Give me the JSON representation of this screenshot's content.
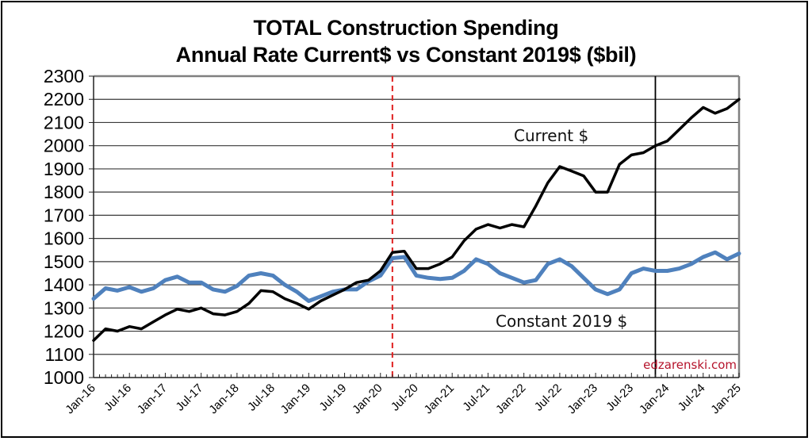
{
  "chart_data": {
    "type": "line",
    "title": "TOTAL Construction Spending",
    "subtitle": "Annual Rate Current$ vs Constant 2019$ ($bil)",
    "xlabel": "",
    "ylabel": "",
    "ylim": [
      1000,
      2300
    ],
    "yticks": [
      1000,
      1100,
      1200,
      1300,
      1400,
      1500,
      1600,
      1700,
      1800,
      1900,
      2000,
      2100,
      2200,
      2300
    ],
    "xrange_months": [
      0,
      108
    ],
    "xticks": [
      "Jan-16",
      "Jul-16",
      "Jan-17",
      "Jul-17",
      "Jan-18",
      "Jul-18",
      "Jan-19",
      "Jul-19",
      "Jan-20",
      "Jul-20",
      "Jan-21",
      "Jul-21",
      "Jan-22",
      "Jul-22",
      "Jan-23",
      "Jul-23",
      "Jan-24",
      "Jul-24",
      "Jan-25"
    ],
    "x_step_months": 2,
    "grid": true,
    "series": [
      {
        "name": "Current $",
        "color": "#000000",
        "values": [
          1160,
          1210,
          1200,
          1220,
          1210,
          1240,
          1270,
          1295,
          1285,
          1300,
          1275,
          1270,
          1285,
          1320,
          1375,
          1370,
          1340,
          1320,
          1295,
          1330,
          1355,
          1380,
          1410,
          1420,
          1460,
          1540,
          1545,
          1470,
          1470,
          1490,
          1520,
          1590,
          1640,
          1660,
          1645,
          1660,
          1650,
          1740,
          1840,
          1910,
          1890,
          1870,
          1800,
          1800,
          1920,
          1960,
          1970,
          2000,
          2020,
          2070,
          2120,
          2165,
          2140,
          2160,
          2200
        ]
      },
      {
        "name": "Constant 2019 $",
        "color": "#4f81bd",
        "values": [
          1340,
          1385,
          1375,
          1390,
          1370,
          1385,
          1420,
          1435,
          1410,
          1410,
          1380,
          1370,
          1395,
          1440,
          1450,
          1440,
          1400,
          1370,
          1330,
          1350,
          1370,
          1380,
          1380,
          1415,
          1440,
          1515,
          1520,
          1440,
          1430,
          1425,
          1430,
          1460,
          1510,
          1490,
          1450,
          1430,
          1410,
          1420,
          1490,
          1510,
          1480,
          1430,
          1380,
          1360,
          1380,
          1450,
          1470,
          1460,
          1460,
          1470,
          1490,
          1520,
          1540,
          1510,
          1535
        ]
      }
    ],
    "annotations": [
      {
        "text": "Current $",
        "near_series": "Current $"
      },
      {
        "text": "Constant 2019 $",
        "near_series": "Constant 2019 $"
      }
    ],
    "reference_lines": [
      {
        "type": "vertical",
        "style": "dashed",
        "color": "#e02020",
        "at_month": 50,
        "label": ""
      },
      {
        "type": "vertical",
        "style": "solid",
        "color": "#000000",
        "at_month": 94,
        "label": ""
      }
    ],
    "watermark": "edzarenski.com",
    "legend": "none"
  }
}
